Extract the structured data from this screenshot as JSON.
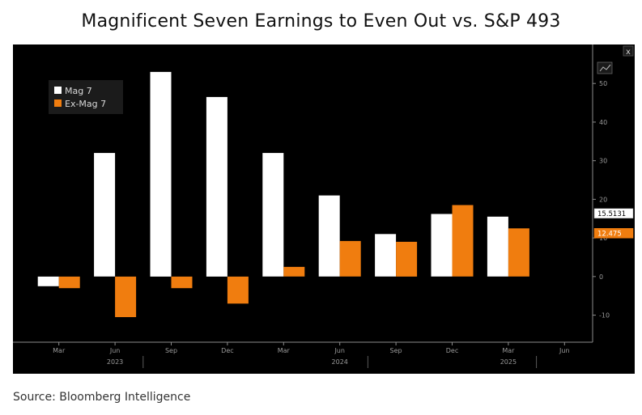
{
  "header": {
    "title": "Magnificent Seven Earnings to Even Out vs. S&P 493"
  },
  "footer": {
    "source": "Source: Bloomberg Intelligence"
  },
  "toolbar": {
    "close_label": "x"
  },
  "colors": {
    "background": "#000000",
    "mag7": "#ffffff",
    "ex_mag7": "#f07d0f",
    "axis": "#8c8c8c",
    "text": "#9a9a9a"
  },
  "chart_data": {
    "type": "bar",
    "categories": [
      "Mar",
      "Jun",
      "Sep",
      "Dec",
      "Mar",
      "Jun",
      "Sep",
      "Dec",
      "Mar",
      "Jun"
    ],
    "year_labels": [
      {
        "label": "2023",
        "after_index": 1
      },
      {
        "label": "2024",
        "after_index": 5
      },
      {
        "label": "2025",
        "after_index": 8
      }
    ],
    "series": [
      {
        "name": "Mag 7",
        "color": "#ffffff",
        "values": [
          -2.5,
          32,
          53,
          46.5,
          32,
          21,
          11,
          16.2,
          15.5131,
          null
        ]
      },
      {
        "name": "Ex-Mag 7",
        "color": "#f07d0f",
        "values": [
          -3,
          -10.5,
          -3,
          -7,
          2.5,
          9.2,
          9,
          18.5,
          12.475,
          null
        ]
      }
    ],
    "last_value_labels": [
      {
        "series": "Mag 7",
        "value": 15.5131,
        "text": "15.5131"
      },
      {
        "series": "Ex-Mag 7",
        "value": 12.475,
        "text": "12.475"
      }
    ],
    "y_ticks": [
      -10,
      0,
      10,
      20,
      30,
      40,
      50
    ],
    "ylim": [
      -17,
      58
    ],
    "xlabel": "",
    "ylabel": "",
    "legend": "top-left",
    "grid": false
  }
}
